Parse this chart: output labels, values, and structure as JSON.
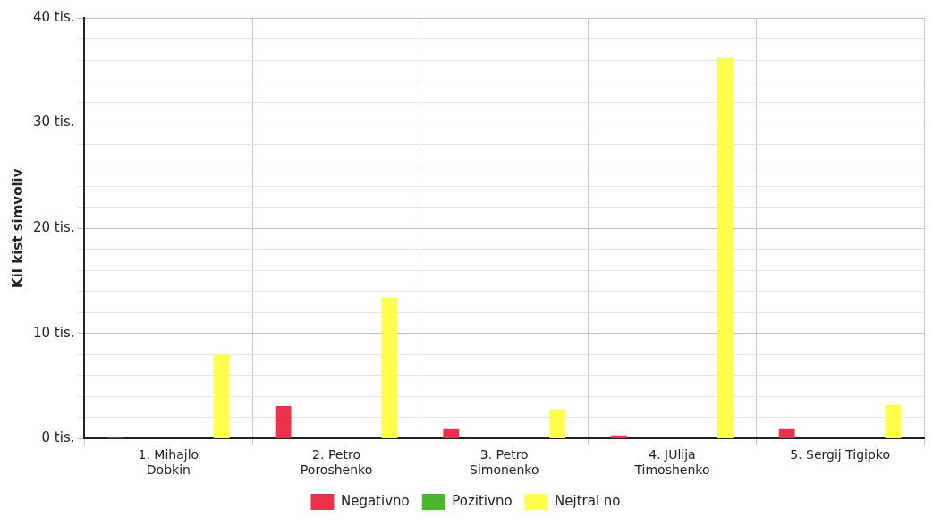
{
  "chart_data": {
    "type": "bar",
    "ylabel": "Kil kist simvoliv",
    "categories": [
      "1. Mihajlo\nDobkin",
      "2. Petro\nPoroshenko",
      "3. Petro\nSimonenko",
      "4. JUlija\nTimoshenko",
      "5. Sergij Tigipko"
    ],
    "series": [
      {
        "name": "Negativno",
        "color": "#e8344a",
        "values": [
          0.1,
          3.1,
          0.9,
          0.3,
          0.9
        ]
      },
      {
        "name": "Pozitivno",
        "color": "#4cb630",
        "values": [
          0,
          0,
          0,
          0,
          0
        ]
      },
      {
        "name": "Nejtral no",
        "color": "#ffff4d",
        "values": [
          8.0,
          13.4,
          2.8,
          36.2,
          3.2
        ]
      }
    ],
    "ylim": [
      0,
      40
    ],
    "yticks": [
      {
        "value": 0,
        "label": "0 tis."
      },
      {
        "value": 2,
        "label": null
      },
      {
        "value": 4,
        "label": null
      },
      {
        "value": 6,
        "label": null
      },
      {
        "value": 8,
        "label": null
      },
      {
        "value": 10,
        "label": "10 tis."
      },
      {
        "value": 12,
        "label": null
      },
      {
        "value": 14,
        "label": null
      },
      {
        "value": 16,
        "label": null
      },
      {
        "value": 18,
        "label": null
      },
      {
        "value": 20,
        "label": "20 tis."
      },
      {
        "value": 22,
        "label": null
      },
      {
        "value": 24,
        "label": null
      },
      {
        "value": 26,
        "label": null
      },
      {
        "value": 28,
        "label": null
      },
      {
        "value": 30,
        "label": "30 tis."
      },
      {
        "value": 32,
        "label": null
      },
      {
        "value": 34,
        "label": null
      },
      {
        "value": 36,
        "label": null
      },
      {
        "value": 38,
        "label": null
      },
      {
        "value": 40,
        "label": "40 tis."
      }
    ],
    "grid": true,
    "legend": "bottom"
  }
}
